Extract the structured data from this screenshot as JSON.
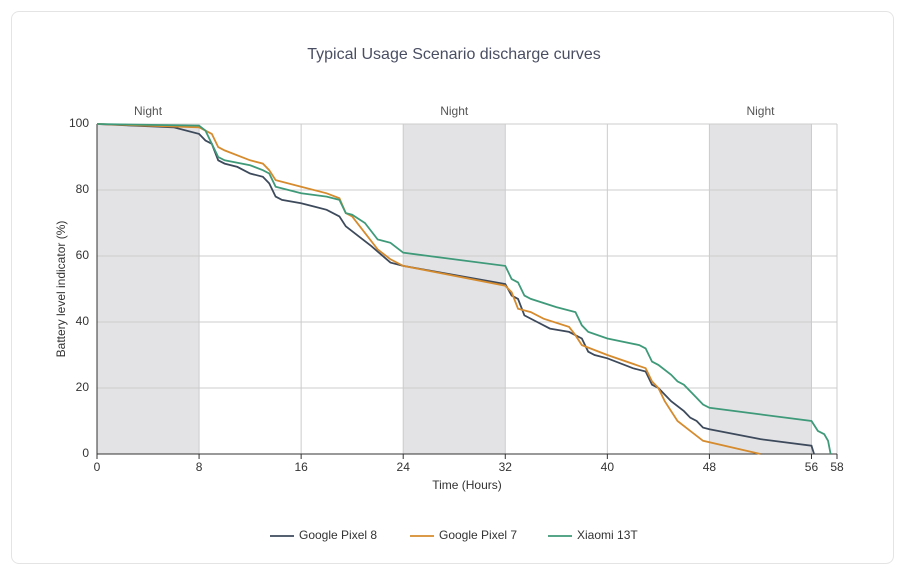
{
  "chart_data": {
    "type": "line",
    "title": "Typical Usage Scenario discharge curves",
    "x_label": "Time (Hours)",
    "y_label": "Battery level indicator (%)",
    "xlim": [
      0,
      58
    ],
    "ylim": [
      0,
      100
    ],
    "xticks": [
      0,
      8,
      16,
      24,
      32,
      40,
      48,
      56,
      58
    ],
    "yticks": [
      0,
      20,
      40,
      60,
      80,
      100
    ],
    "grid": true,
    "legend": "bottom",
    "bands": [
      {
        "from": 0,
        "to": 8,
        "label": "Night"
      },
      {
        "from": 24,
        "to": 32,
        "label": "Night"
      },
      {
        "from": 48,
        "to": 56,
        "label": "Night"
      }
    ],
    "series": [
      {
        "name": "Google Pixel 8",
        "color": "#3d4a5c",
        "x": [
          0,
          6,
          8,
          8.5,
          9,
          9.5,
          10,
          11,
          12,
          13,
          13.5,
          14,
          14.5,
          16,
          17,
          18,
          19,
          19.5,
          20.5,
          21.5,
          23,
          24,
          32,
          32.5,
          33,
          33.5,
          34.5,
          35.5,
          37,
          38,
          38.5,
          39,
          40,
          42,
          43,
          43.5,
          44,
          45,
          46,
          46.5,
          47,
          47.5,
          48,
          52,
          56,
          56.2
        ],
        "values": [
          100,
          99,
          97,
          95,
          94,
          89,
          88,
          87,
          85,
          84,
          82,
          78,
          77,
          76,
          75,
          74,
          72,
          69,
          66,
          63,
          58,
          57,
          51.5,
          48,
          47,
          42,
          40,
          38,
          37,
          35,
          31,
          30,
          29,
          26,
          25,
          21,
          20,
          16,
          13,
          11,
          10,
          8,
          7.5,
          4.5,
          2.5,
          0
        ]
      },
      {
        "name": "Google Pixel 7",
        "color": "#d58b2e",
        "x": [
          0,
          8,
          9,
          9.5,
          10,
          12,
          13,
          13.5,
          14,
          16,
          18,
          19,
          19.5,
          20,
          21,
          22,
          23,
          24,
          32,
          32.5,
          33,
          34,
          35,
          37,
          37.5,
          38,
          40,
          43,
          43.5,
          44,
          44.5,
          45,
          45.5,
          46.5,
          47.5,
          52
        ],
        "values": [
          100,
          99,
          97,
          93,
          92,
          89,
          88,
          86,
          83,
          81,
          79,
          77.5,
          73,
          72,
          67,
          62,
          59,
          57,
          51,
          49,
          44,
          43,
          41,
          38.5,
          36,
          33,
          30,
          26,
          22,
          20,
          16,
          13,
          10,
          7,
          4,
          0
        ]
      },
      {
        "name": "Xiaomi 13T",
        "color": "#3f9a7a",
        "x": [
          0,
          8,
          8.5,
          9,
          9.5,
          10,
          12,
          13,
          13.5,
          14,
          16,
          18,
          19,
          19.5,
          20,
          21,
          22,
          23,
          24,
          32,
          32.5,
          33,
          33.5,
          34,
          36,
          37.5,
          38,
          38.5,
          40,
          42.5,
          43,
          43.5,
          44,
          45,
          45.5,
          46,
          47,
          47.5,
          48,
          52,
          56,
          56.5,
          57,
          57.3,
          57.5
        ],
        "values": [
          100,
          99.5,
          98,
          94,
          90,
          89,
          87.5,
          86,
          85,
          81,
          79,
          78,
          77,
          73,
          72.5,
          70,
          65,
          64,
          61,
          57,
          53,
          52,
          48,
          47,
          44.5,
          43,
          39,
          37,
          35,
          33,
          32,
          28,
          27,
          24,
          22,
          21,
          17,
          15,
          14,
          12,
          10,
          7,
          6,
          4,
          0
        ]
      }
    ]
  }
}
